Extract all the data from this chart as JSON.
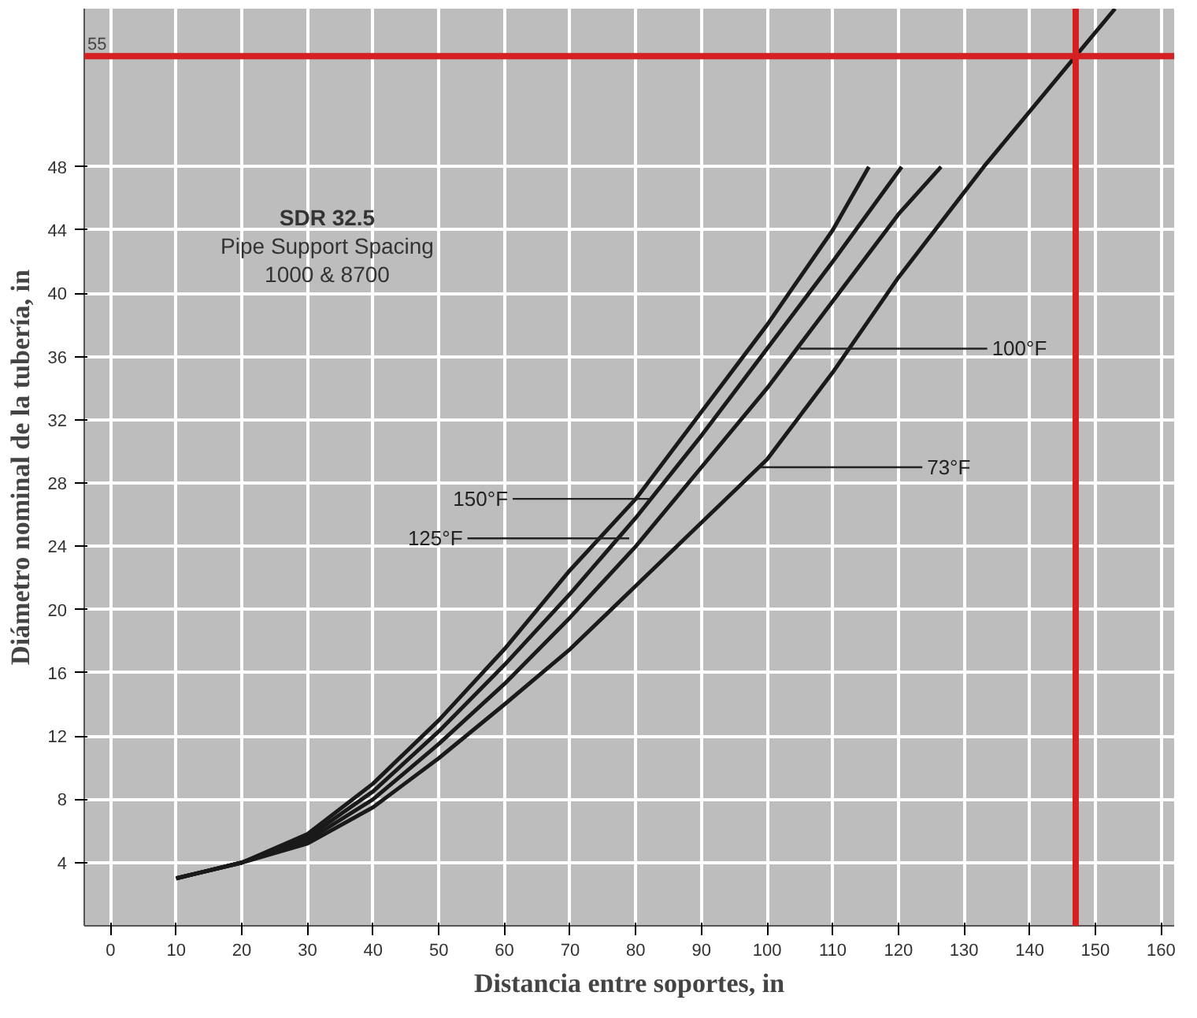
{
  "chart_data": {
    "type": "line",
    "xlabel": "Distancia entre soportes, in",
    "ylabel": "Diámetro nominal de la tubería, in",
    "xlim": [
      -4,
      162
    ],
    "ylim": [
      0,
      58
    ],
    "xticks": [
      0,
      10,
      20,
      30,
      40,
      50,
      60,
      70,
      80,
      90,
      100,
      110,
      120,
      130,
      140,
      150,
      160
    ],
    "yticks": [
      4,
      8,
      12,
      16,
      20,
      24,
      28,
      32,
      36,
      40,
      44,
      48
    ],
    "grid": true,
    "marker": "none",
    "line_style": "solid",
    "series": [
      {
        "color": "#1a1a1a",
        "x": [
          10,
          20,
          30,
          40,
          50,
          60,
          70,
          80,
          90,
          100,
          110,
          115.5
        ],
        "values": [
          3,
          4,
          5.8,
          9,
          13,
          17.5,
          22.5,
          27,
          32.5,
          38,
          44,
          48
        ]
      },
      {
        "color": "#1a1a1a",
        "x": [
          10,
          20,
          30,
          40,
          50,
          60,
          70,
          80,
          90,
          100,
          110,
          120.5
        ],
        "values": [
          3,
          4,
          5.6,
          8.5,
          12.3,
          16.5,
          21,
          25.8,
          31,
          36.5,
          42,
          48
        ]
      },
      {
        "color": "#1a1a1a",
        "x": [
          10,
          20,
          30,
          40,
          50,
          60,
          70,
          80,
          90,
          100,
          110,
          120,
          126.5
        ],
        "values": [
          3,
          4,
          5.4,
          8,
          11.5,
          15.3,
          19.5,
          24,
          29,
          34,
          39.5,
          45,
          48
        ]
      },
      {
        "color": "#1a1a1a",
        "x": [
          10,
          20,
          30,
          40,
          50,
          60,
          70,
          80,
          90,
          100,
          110,
          120,
          133,
          147,
          153
        ],
        "values": [
          3,
          4,
          5.2,
          7.5,
          10.6,
          14,
          17.5,
          21.5,
          25.5,
          29.5,
          35,
          41,
          48,
          55,
          58
        ]
      }
    ],
    "ref_lines": [
      {
        "axis": "y",
        "value": 55,
        "label": "55",
        "color": "#d42020"
      },
      {
        "axis": "x",
        "value": 147,
        "label": null,
        "color": "#d42020"
      }
    ],
    "annotations": [
      "SDR 32.5",
      "Pipe Support Spacing",
      "1000 & 8700",
      {
        "text": "150°F",
        "x": 82,
        "y": 27
      },
      {
        "text": "125°F",
        "x": 79,
        "y": 24.5
      },
      {
        "text": "100°F",
        "x": 105,
        "y": 36.5
      },
      {
        "text": "73°F",
        "x": 99,
        "y": 29
      }
    ]
  }
}
